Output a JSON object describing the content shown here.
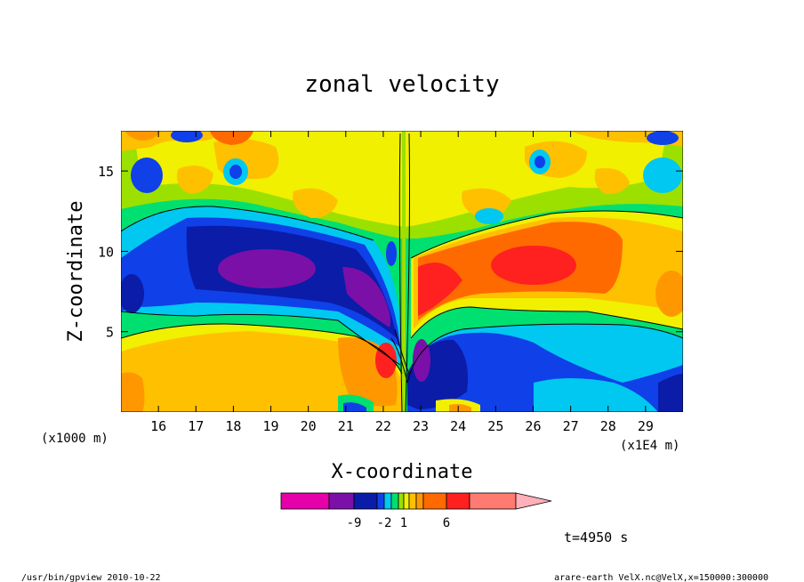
{
  "chart_data": {
    "type": "heatmap",
    "title": "zonal velocity",
    "xlabel": "X-coordinate",
    "ylabel": "Z-coordinate",
    "x_unit_left": "(x1000 m)",
    "x_unit_right": "(x1E4 m)",
    "x_ticks": [
      16,
      17,
      18,
      19,
      20,
      21,
      22,
      23,
      24,
      25,
      26,
      27,
      28,
      29
    ],
    "y_ticks": [
      5,
      10,
      15
    ],
    "xlim": [
      15,
      30
    ],
    "ylim": [
      0,
      17.5
    ],
    "grid": false,
    "colorbar": {
      "colors": [
        "#e600aa",
        "#7a10a8",
        "#0a1ca8",
        "#1040e8",
        "#00c8f0",
        "#00e070",
        "#9ce000",
        "#f0f000",
        "#ffc000",
        "#ff9800",
        "#ff6a00",
        "#ff2020",
        "#ff7a70",
        "#ffb0b8"
      ],
      "tick_labels": [
        "-9",
        "-2",
        "1",
        "6"
      ]
    },
    "time_label": "t=4950 s",
    "footer_left": "/usr/bin/gpview  2010-10-22",
    "footer_right": "arare-earth_VelX.nc@VelX,x=150000:300000"
  }
}
